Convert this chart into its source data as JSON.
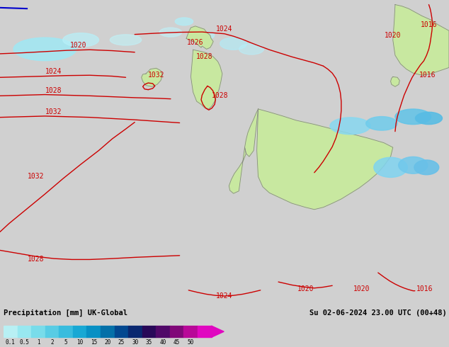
{
  "title_left": "Precipitation [mm] UK-Global",
  "title_right": "Su 02-06-2024 23.00 UTC (00+48)",
  "colorbar_label_strs": [
    "0.1",
    "0.5",
    "1",
    "2",
    "5",
    "10",
    "15",
    "20",
    "25",
    "30",
    "35",
    "40",
    "45",
    "50"
  ],
  "colorbar_colors": [
    "#b8f0f4",
    "#98e8f0",
    "#78dcea",
    "#58cce4",
    "#38bcde",
    "#18a8d4",
    "#0890c4",
    "#0470a8",
    "#024890",
    "#0a2870",
    "#280858",
    "#500868",
    "#800878",
    "#b80898",
    "#e008c0"
  ],
  "sea_color": "#e8e8e8",
  "land_color": "#c8e8a0",
  "land_border_color": "#888888",
  "precip_light_color": "#90e0f0",
  "contour_color": "#cc0000",
  "blue_front_color": "#0000cc",
  "bg_color": "#d0d0d0",
  "fig_width": 6.34,
  "fig_height": 4.9,
  "dpi": 100
}
